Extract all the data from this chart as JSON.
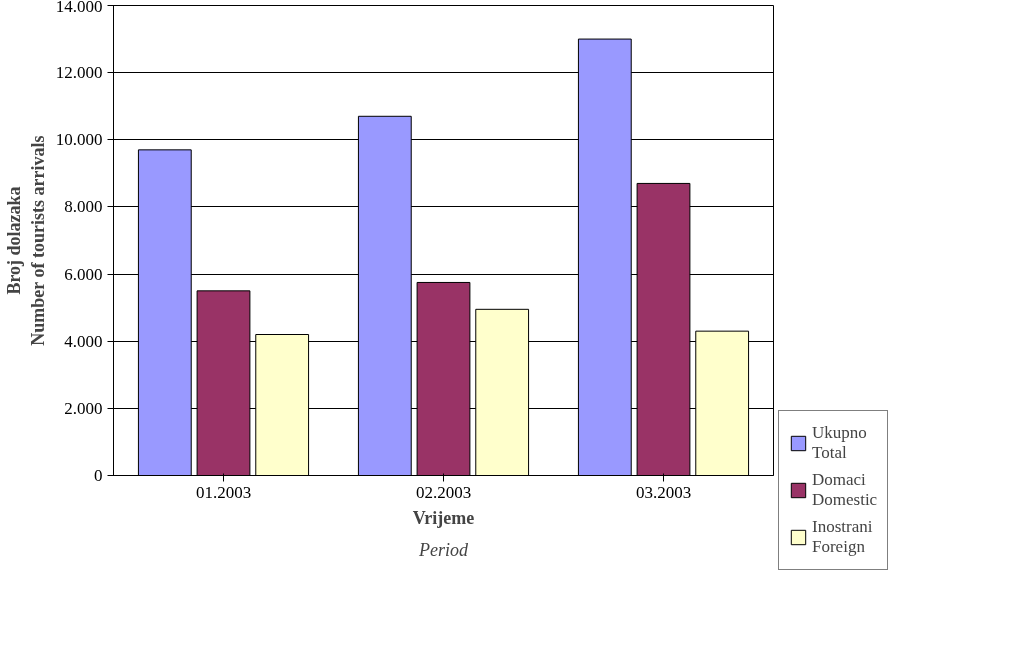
{
  "chart_data": {
    "type": "bar",
    "categories": [
      "01.2003",
      "02.2003",
      "03.2003"
    ],
    "series": [
      {
        "name": "Ukupno\nTotal",
        "color": "#9999ff",
        "values": [
          9700,
          10700,
          13000
        ]
      },
      {
        "name": "Domaci\nDomestic",
        "color": "#993366",
        "values": [
          5500,
          5750,
          8700
        ]
      },
      {
        "name": "Inostrani\nForeign",
        "color": "#ffffcc",
        "values": [
          4200,
          4950,
          4300
        ]
      }
    ],
    "xlabel": "Vrijeme\nPeriod",
    "ylabel": "Broj dolazaka\nNumber of tourists arrivals",
    "ylim": [
      0,
      14000
    ],
    "yticks": [
      0,
      {
        "value": 2000,
        "label": "2.000"
      },
      {
        "value": 4000,
        "label": "4.000"
      },
      {
        "value": 6000,
        "label": "6.000"
      },
      {
        "value": 8000,
        "label": "8.000"
      },
      {
        "value": 10000,
        "label": "10.000"
      },
      {
        "value": 12000,
        "label": "12.000"
      },
      {
        "value": 14000,
        "label": "14.000"
      }
    ],
    "grid": "y",
    "legend": "bottom right"
  }
}
